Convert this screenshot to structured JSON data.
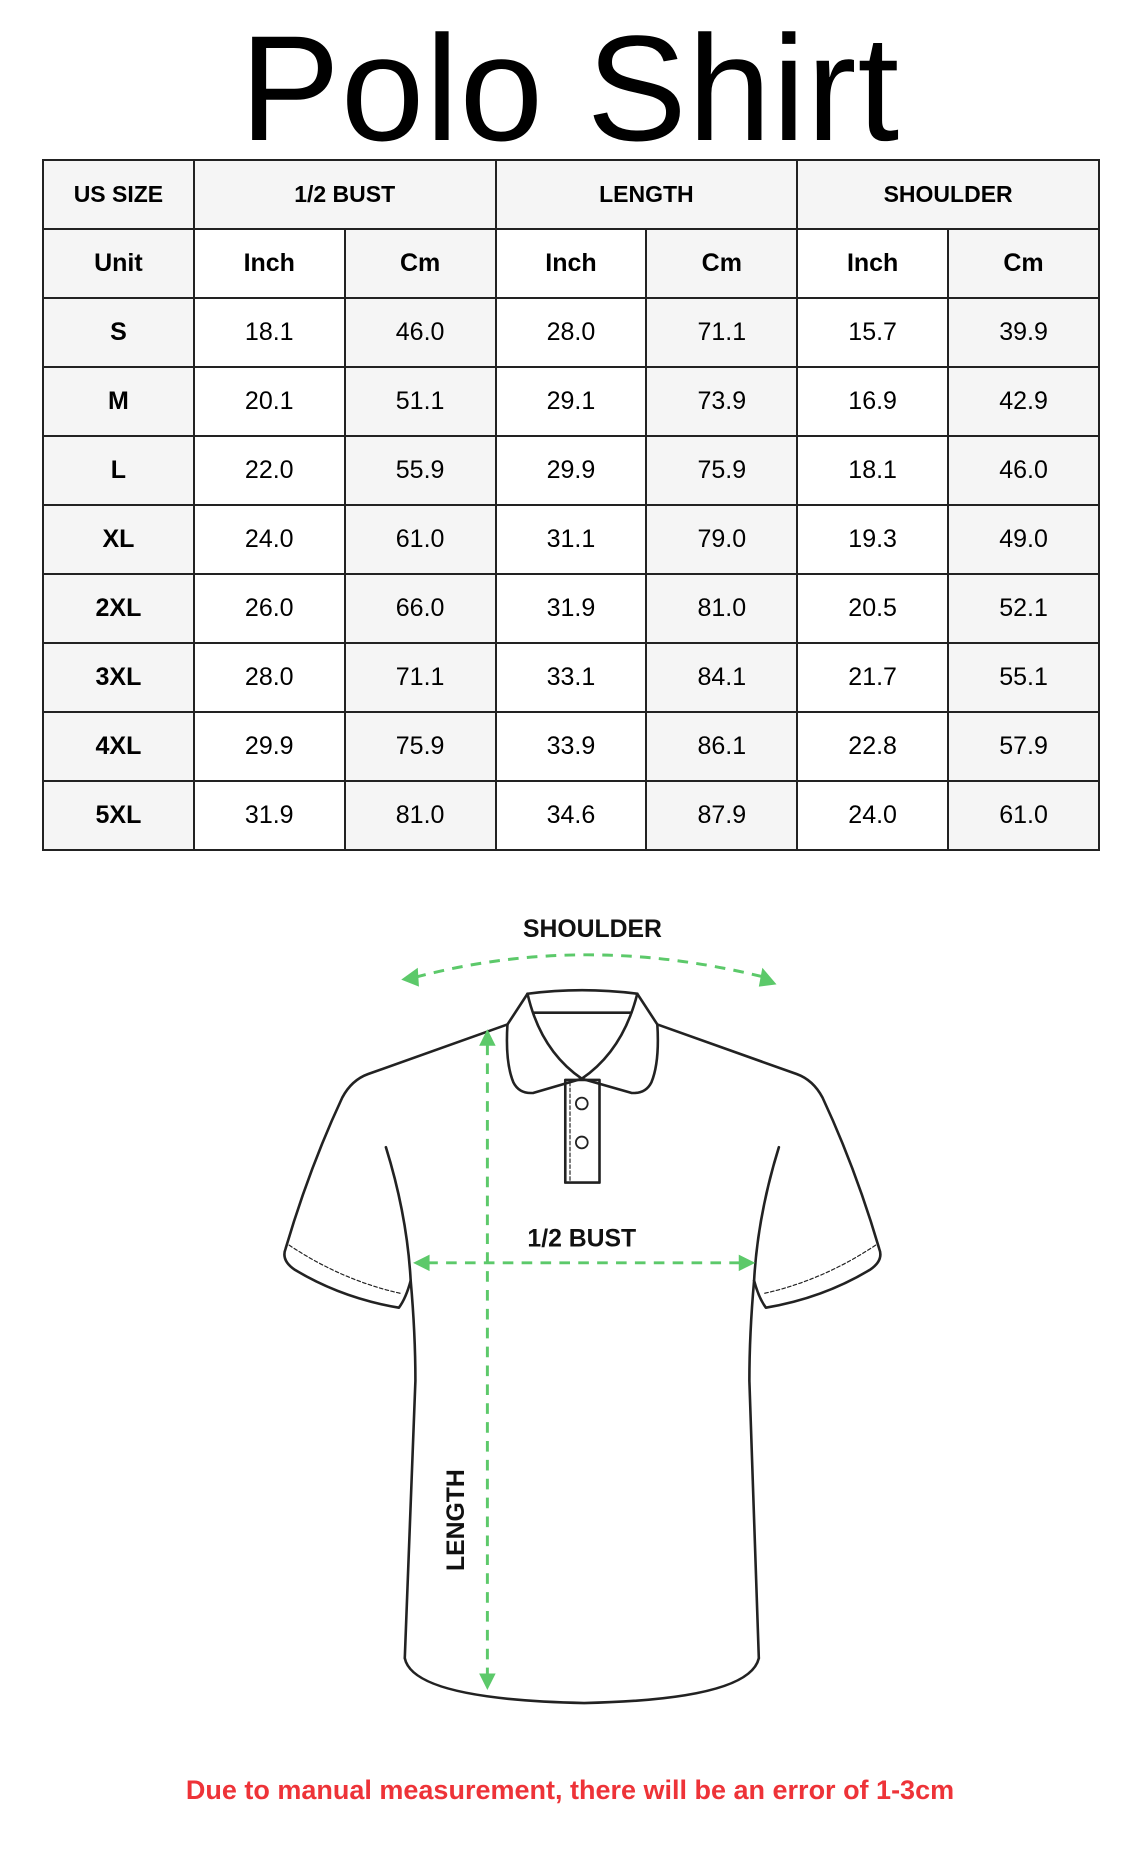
{
  "title": "Polo Shirt",
  "table": {
    "header": {
      "size_label": "US SIZE",
      "groups": [
        "1/2 BUST",
        "LENGTH",
        "SHOULDER"
      ]
    },
    "units_row": {
      "label": "Unit",
      "units": [
        "Inch",
        "Cm",
        "Inch",
        "Cm",
        "Inch",
        "Cm"
      ]
    },
    "rows": [
      {
        "size": "S",
        "values": [
          "18.1",
          "46.0",
          "28.0",
          "71.1",
          "15.7",
          "39.9"
        ]
      },
      {
        "size": "M",
        "values": [
          "20.1",
          "51.1",
          "29.1",
          "73.9",
          "16.9",
          "42.9"
        ]
      },
      {
        "size": "L",
        "values": [
          "22.0",
          "55.9",
          "29.9",
          "75.9",
          "18.1",
          "46.0"
        ]
      },
      {
        "size": "XL",
        "values": [
          "24.0",
          "61.0",
          "31.1",
          "79.0",
          "19.3",
          "49.0"
        ]
      },
      {
        "size": "2XL",
        "values": [
          "26.0",
          "66.0",
          "31.9",
          "81.0",
          "20.5",
          "52.1"
        ]
      },
      {
        "size": "3XL",
        "values": [
          "28.0",
          "71.1",
          "33.1",
          "84.1",
          "21.7",
          "55.1"
        ]
      },
      {
        "size": "4XL",
        "values": [
          "29.9",
          "75.9",
          "33.9",
          "86.1",
          "22.8",
          "57.9"
        ]
      },
      {
        "size": "5XL",
        "values": [
          "31.9",
          "81.0",
          "34.6",
          "87.9",
          "24.0",
          "61.0"
        ]
      }
    ]
  },
  "diagram": {
    "shoulder_label": "SHOULDER",
    "bust_label": "1/2 BUST",
    "length_label": "LENGTH",
    "arrow_color": "#5cc96a",
    "outline_color": "#222222"
  },
  "footer_note": "Due to manual measurement, there will be an error of 1-3cm",
  "colors": {
    "note": "#ee3338",
    "header_bg": "#f5f5f5"
  }
}
